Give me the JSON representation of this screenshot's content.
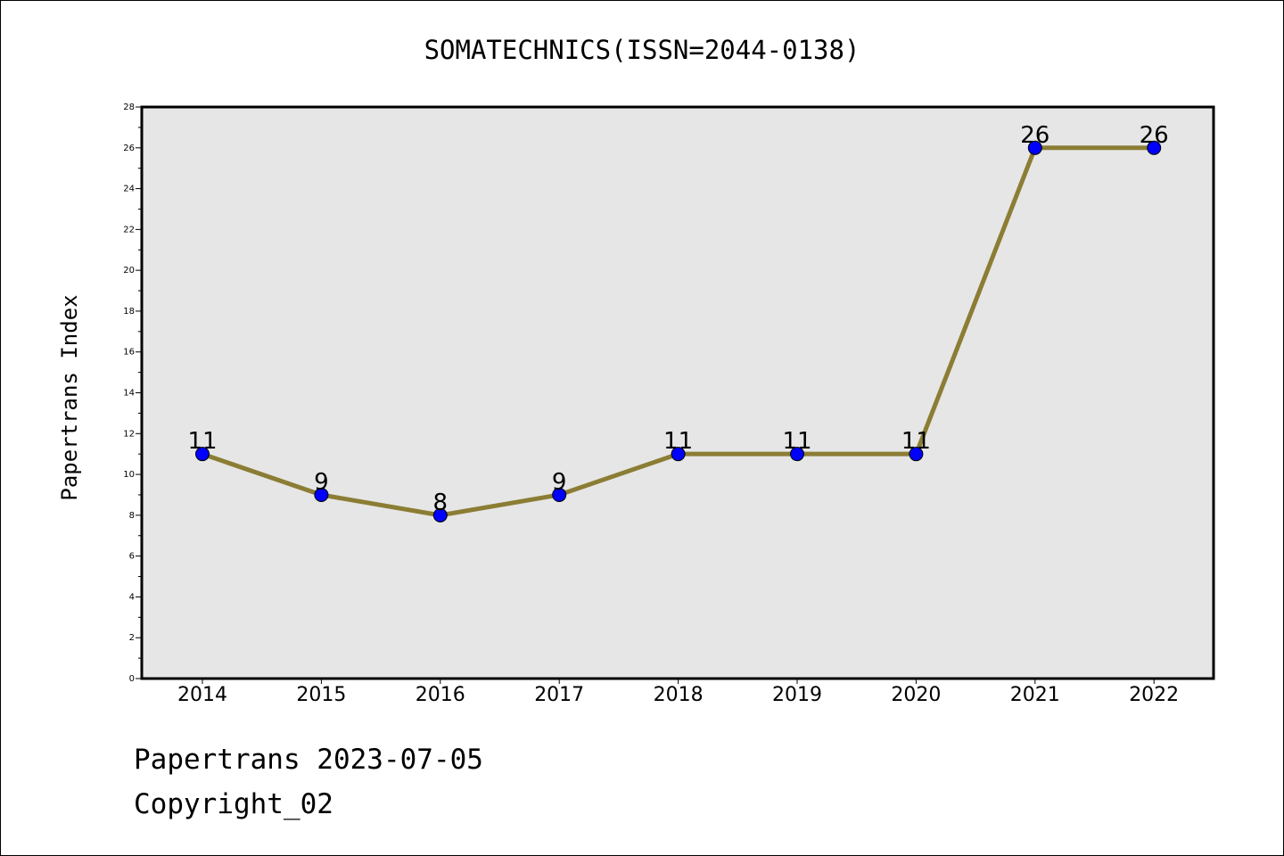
{
  "chart_data": {
    "type": "line",
    "title": "SOMATECHNICS(ISSN=2044-0138)",
    "xlabel": "",
    "ylabel": "Papertrans Index",
    "categories": [
      "2014",
      "2015",
      "2016",
      "2017",
      "2018",
      "2019",
      "2020",
      "2021",
      "2022"
    ],
    "series": [
      {
        "values": [
          11,
          9,
          8,
          9,
          11,
          11,
          11,
          26,
          26
        ]
      }
    ],
    "ylim": [
      0,
      28
    ],
    "yticks": [
      0,
      2,
      4,
      6,
      8,
      10,
      12,
      14,
      16,
      18,
      20,
      22,
      24,
      26,
      28
    ],
    "grid": false,
    "data_labels": true,
    "colors": {
      "line": "#8b7d34",
      "marker": "#0000ff",
      "plot_background": "#e6e6e6"
    }
  },
  "footer": {
    "date_line": "Papertrans 2023-07-05",
    "copyright_line": "Copyright_02"
  }
}
